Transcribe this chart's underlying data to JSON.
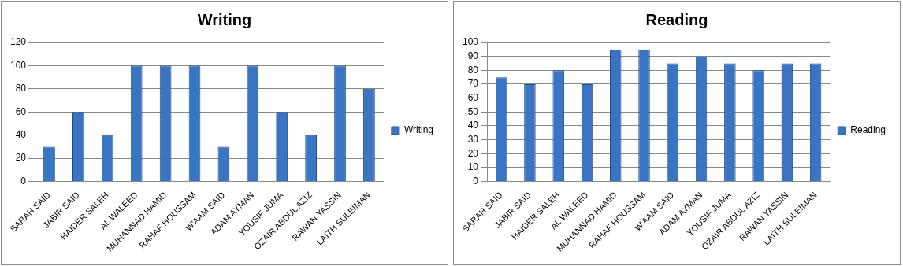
{
  "chart_data": [
    {
      "type": "bar",
      "title": "Writing",
      "categories": [
        "SARAH SAID",
        "JABIR SAID",
        "HAIDER SALEH",
        "AL WALEED",
        "MUHANNAD HAMID",
        "RAHAF HOUSSAM",
        "W'AAM SAID",
        "ADAM AYMAN",
        "YOUSIF JUMA",
        "OZAIR ABDUL AZIZ",
        "RAWAN YASSIN",
        "LAITH SULEIMAN"
      ],
      "series": [
        {
          "name": "Writing",
          "color": "#3a75c4",
          "values": [
            30,
            60,
            40,
            100,
            100,
            100,
            30,
            100,
            60,
            40,
            100,
            80
          ]
        }
      ],
      "ylim": [
        0,
        120
      ],
      "yticks": [
        0,
        20,
        40,
        60,
        80,
        100,
        120
      ],
      "grid": "y",
      "legend": "right"
    },
    {
      "type": "bar",
      "title": "Reading",
      "categories": [
        "SARAH SAID",
        "JABIR SAID",
        "HAIDER SALEH",
        "AL WALEED",
        "MUHANNAD HAMID",
        "RAHAF HOUSSAM",
        "W'AAM SAID",
        "ADAM AYMAN",
        "YOUSIF JUMA",
        "OZAIR ABDUL AZIZ",
        "RAWAN YASSIN",
        "LAITH SULEIMAN"
      ],
      "series": [
        {
          "name": "Reading",
          "color": "#3a75c4",
          "values": [
            75,
            70,
            80,
            70,
            95,
            95,
            85,
            90,
            85,
            80,
            85,
            85
          ]
        }
      ],
      "ylim": [
        0,
        100
      ],
      "yticks": [
        0,
        10,
        20,
        30,
        40,
        50,
        60,
        70,
        80,
        90,
        100
      ],
      "grid": "y",
      "legend": "right"
    }
  ]
}
